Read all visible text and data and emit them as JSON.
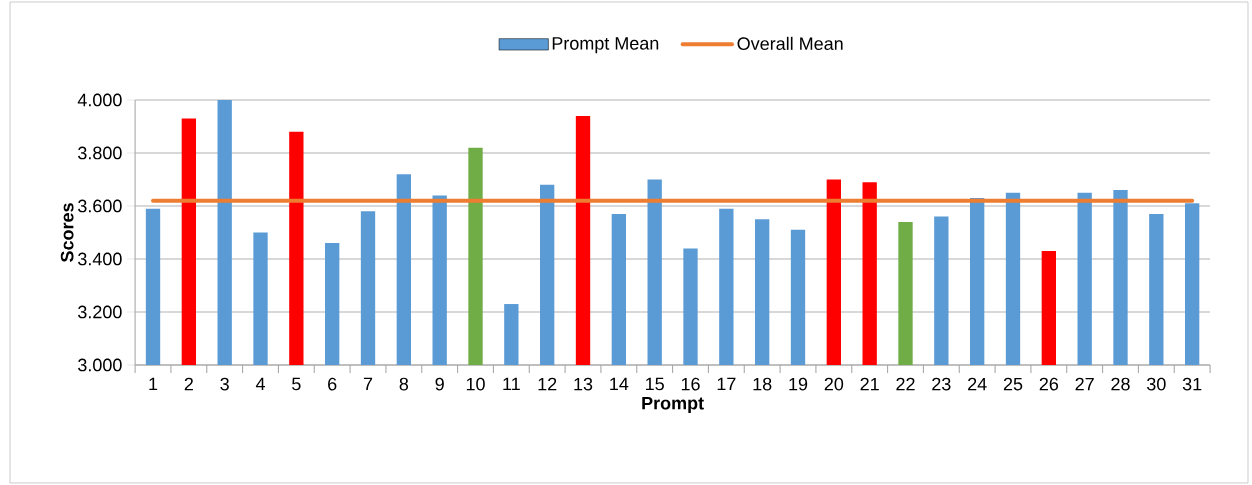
{
  "chart_data": {
    "type": "bar",
    "xlabel": "Prompt",
    "ylabel": "Scores",
    "categories": [
      "1",
      "2",
      "3",
      "4",
      "5",
      "6",
      "7",
      "8",
      "9",
      "10",
      "11",
      "12",
      "13",
      "14",
      "15",
      "16",
      "17",
      "18",
      "19",
      "20",
      "21",
      "22",
      "23",
      "24",
      "25",
      "26",
      "27",
      "28",
      "30",
      "31"
    ],
    "series": [
      {
        "name": "Prompt Mean",
        "color": "#5b9bd5",
        "colors": [
          "#5b9bd5",
          "#ff0000",
          "#5b9bd5",
          "#5b9bd5",
          "#ff0000",
          "#5b9bd5",
          "#5b9bd5",
          "#5b9bd5",
          "#5b9bd5",
          "#70ad47",
          "#5b9bd5",
          "#5b9bd5",
          "#ff0000",
          "#5b9bd5",
          "#5b9bd5",
          "#5b9bd5",
          "#5b9bd5",
          "#5b9bd5",
          "#5b9bd5",
          "#ff0000",
          "#ff0000",
          "#70ad47",
          "#5b9bd5",
          "#5b9bd5",
          "#5b9bd5",
          "#ff0000",
          "#5b9bd5",
          "#5b9bd5",
          "#5b9bd5",
          "#5b9bd5"
        ],
        "values": [
          3.59,
          3.93,
          4.0,
          3.5,
          3.88,
          3.46,
          3.58,
          3.72,
          3.64,
          3.82,
          3.23,
          3.68,
          3.94,
          3.57,
          3.7,
          3.44,
          3.59,
          3.55,
          3.51,
          3.7,
          3.69,
          3.54,
          3.56,
          3.63,
          3.65,
          3.43,
          3.65,
          3.66,
          3.57,
          3.61
        ]
      },
      {
        "name": "Overall Mean",
        "type": "line",
        "color": "#ed7d31",
        "values": [
          3.62,
          3.62,
          3.62,
          3.62,
          3.62,
          3.62,
          3.62,
          3.62,
          3.62,
          3.62,
          3.62,
          3.62,
          3.62,
          3.62,
          3.62,
          3.62,
          3.62,
          3.62,
          3.62,
          3.62,
          3.62,
          3.62,
          3.62,
          3.62,
          3.62,
          3.62,
          3.62,
          3.62,
          3.62,
          3.62
        ]
      }
    ],
    "ylim": [
      3,
      4
    ],
    "yticks": [
      {
        "value": 3,
        "label": "3.000"
      },
      {
        "value": 3.2,
        "label": "3.200"
      },
      {
        "value": 3.4,
        "label": "3.400"
      },
      {
        "value": 3.6,
        "label": "3.600"
      },
      {
        "value": 3.8,
        "label": "3.800"
      },
      {
        "value": 4,
        "label": "4.000"
      }
    ],
    "grid": "y",
    "legend": "top"
  }
}
